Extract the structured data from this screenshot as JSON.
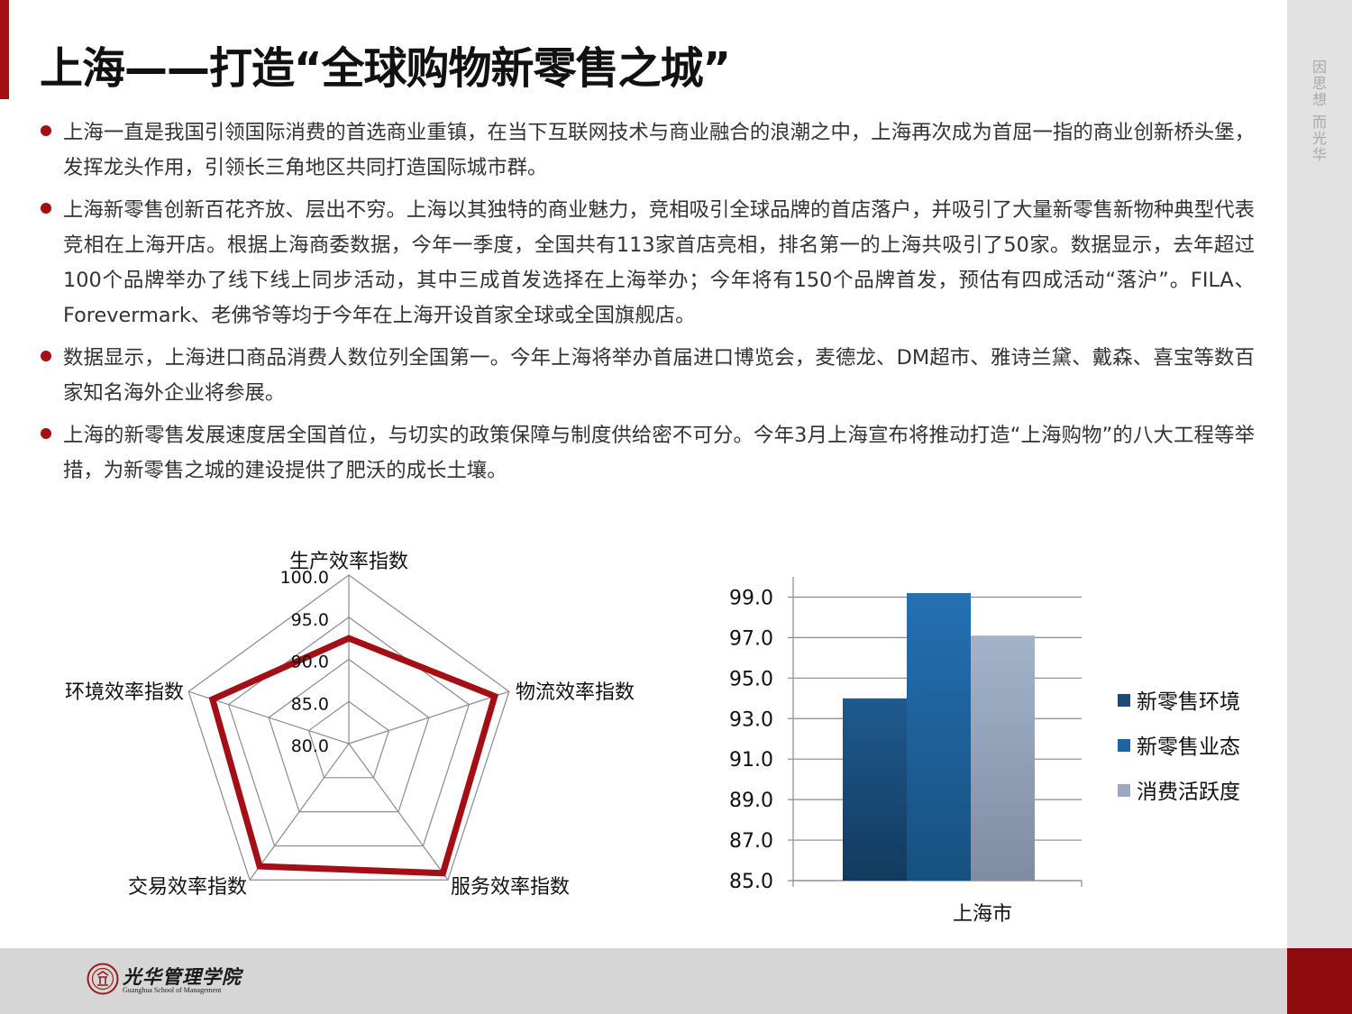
{
  "title": "上海——打造“全球购物新零售之城”",
  "side_label": "因思想 而光华",
  "bullets": [
    "上海一直是我国引领国际消费的首选商业重镇，在当下互联网技术与商业融合的浪潮之中，上海再次成为首屈一指的商业创新桥头堡，发挥龙头作用，引领长三角地区共同打造国际城市群。",
    "上海新零售创新百花齐放、层出不穷。上海以其独特的商业魅力，竞相吸引全球品牌的首店落户，并吸引了大量新零售新物种典型代表竞相在上海开店。根据上海商委数据，今年一季度，全国共有113家首店亮相，排名第一的上海共吸引了50家。数据显示，去年超过100个品牌举办了线下线上同步活动，其中三成首发选择在上海举办；今年将有150个品牌首发，预估有四成活动“落沪”。FILA、Forevermark、老佛爷等均于今年在上海开设首家全球或全国旗舰店。",
    "数据显示，上海进口商品消费人数位列全国第一。今年上海将举办首届进口博览会，麦德龙、DM超市、雅诗兰黛、戴森、喜宝等数百家知名海外企业将参展。",
    "上海的新零售发展速度居全国首位，与切实的政策保障与制度供给密不可分。今年3月上海宣布将推动打造“上海购物”的八大工程等举措，为新零售之城的建设提供了肥沃的成长土壤。"
  ],
  "logo": {
    "name_cn": "光华管理学院",
    "name_en": "Guanghua School of Management"
  },
  "colors": {
    "accent_red": "#a30f14",
    "series_1": "#1b4a78",
    "series_2": "#1f63a2",
    "series_3": "#9aa9c0"
  },
  "chart_data": [
    {
      "type": "radar",
      "categories": [
        "生产效率指数",
        "物流效率指数",
        "服务效率指数",
        "交易效率指数",
        "环境效率指数"
      ],
      "axis_ticks": [
        "80.0",
        "85.0",
        "90.0",
        "95.0",
        "100.0"
      ],
      "rlim": [
        80,
        100
      ],
      "values": [
        92.5,
        98.2,
        99.0,
        98.0,
        97.0
      ],
      "series_color": "#a30f14",
      "legend": "none"
    },
    {
      "type": "bar",
      "categories": [
        "上海市"
      ],
      "series": [
        {
          "name": "新零售环境",
          "values": [
            94.0
          ]
        },
        {
          "name": "新零售业态",
          "values": [
            99.2
          ]
        },
        {
          "name": "消费活跃度",
          "values": [
            97.1
          ]
        }
      ],
      "ylim": [
        85,
        100
      ],
      "y_ticks": [
        "85.0",
        "87.0",
        "89.0",
        "91.0",
        "93.0",
        "95.0",
        "97.0",
        "99.0"
      ],
      "grid": true,
      "legend_placement": "right"
    }
  ]
}
